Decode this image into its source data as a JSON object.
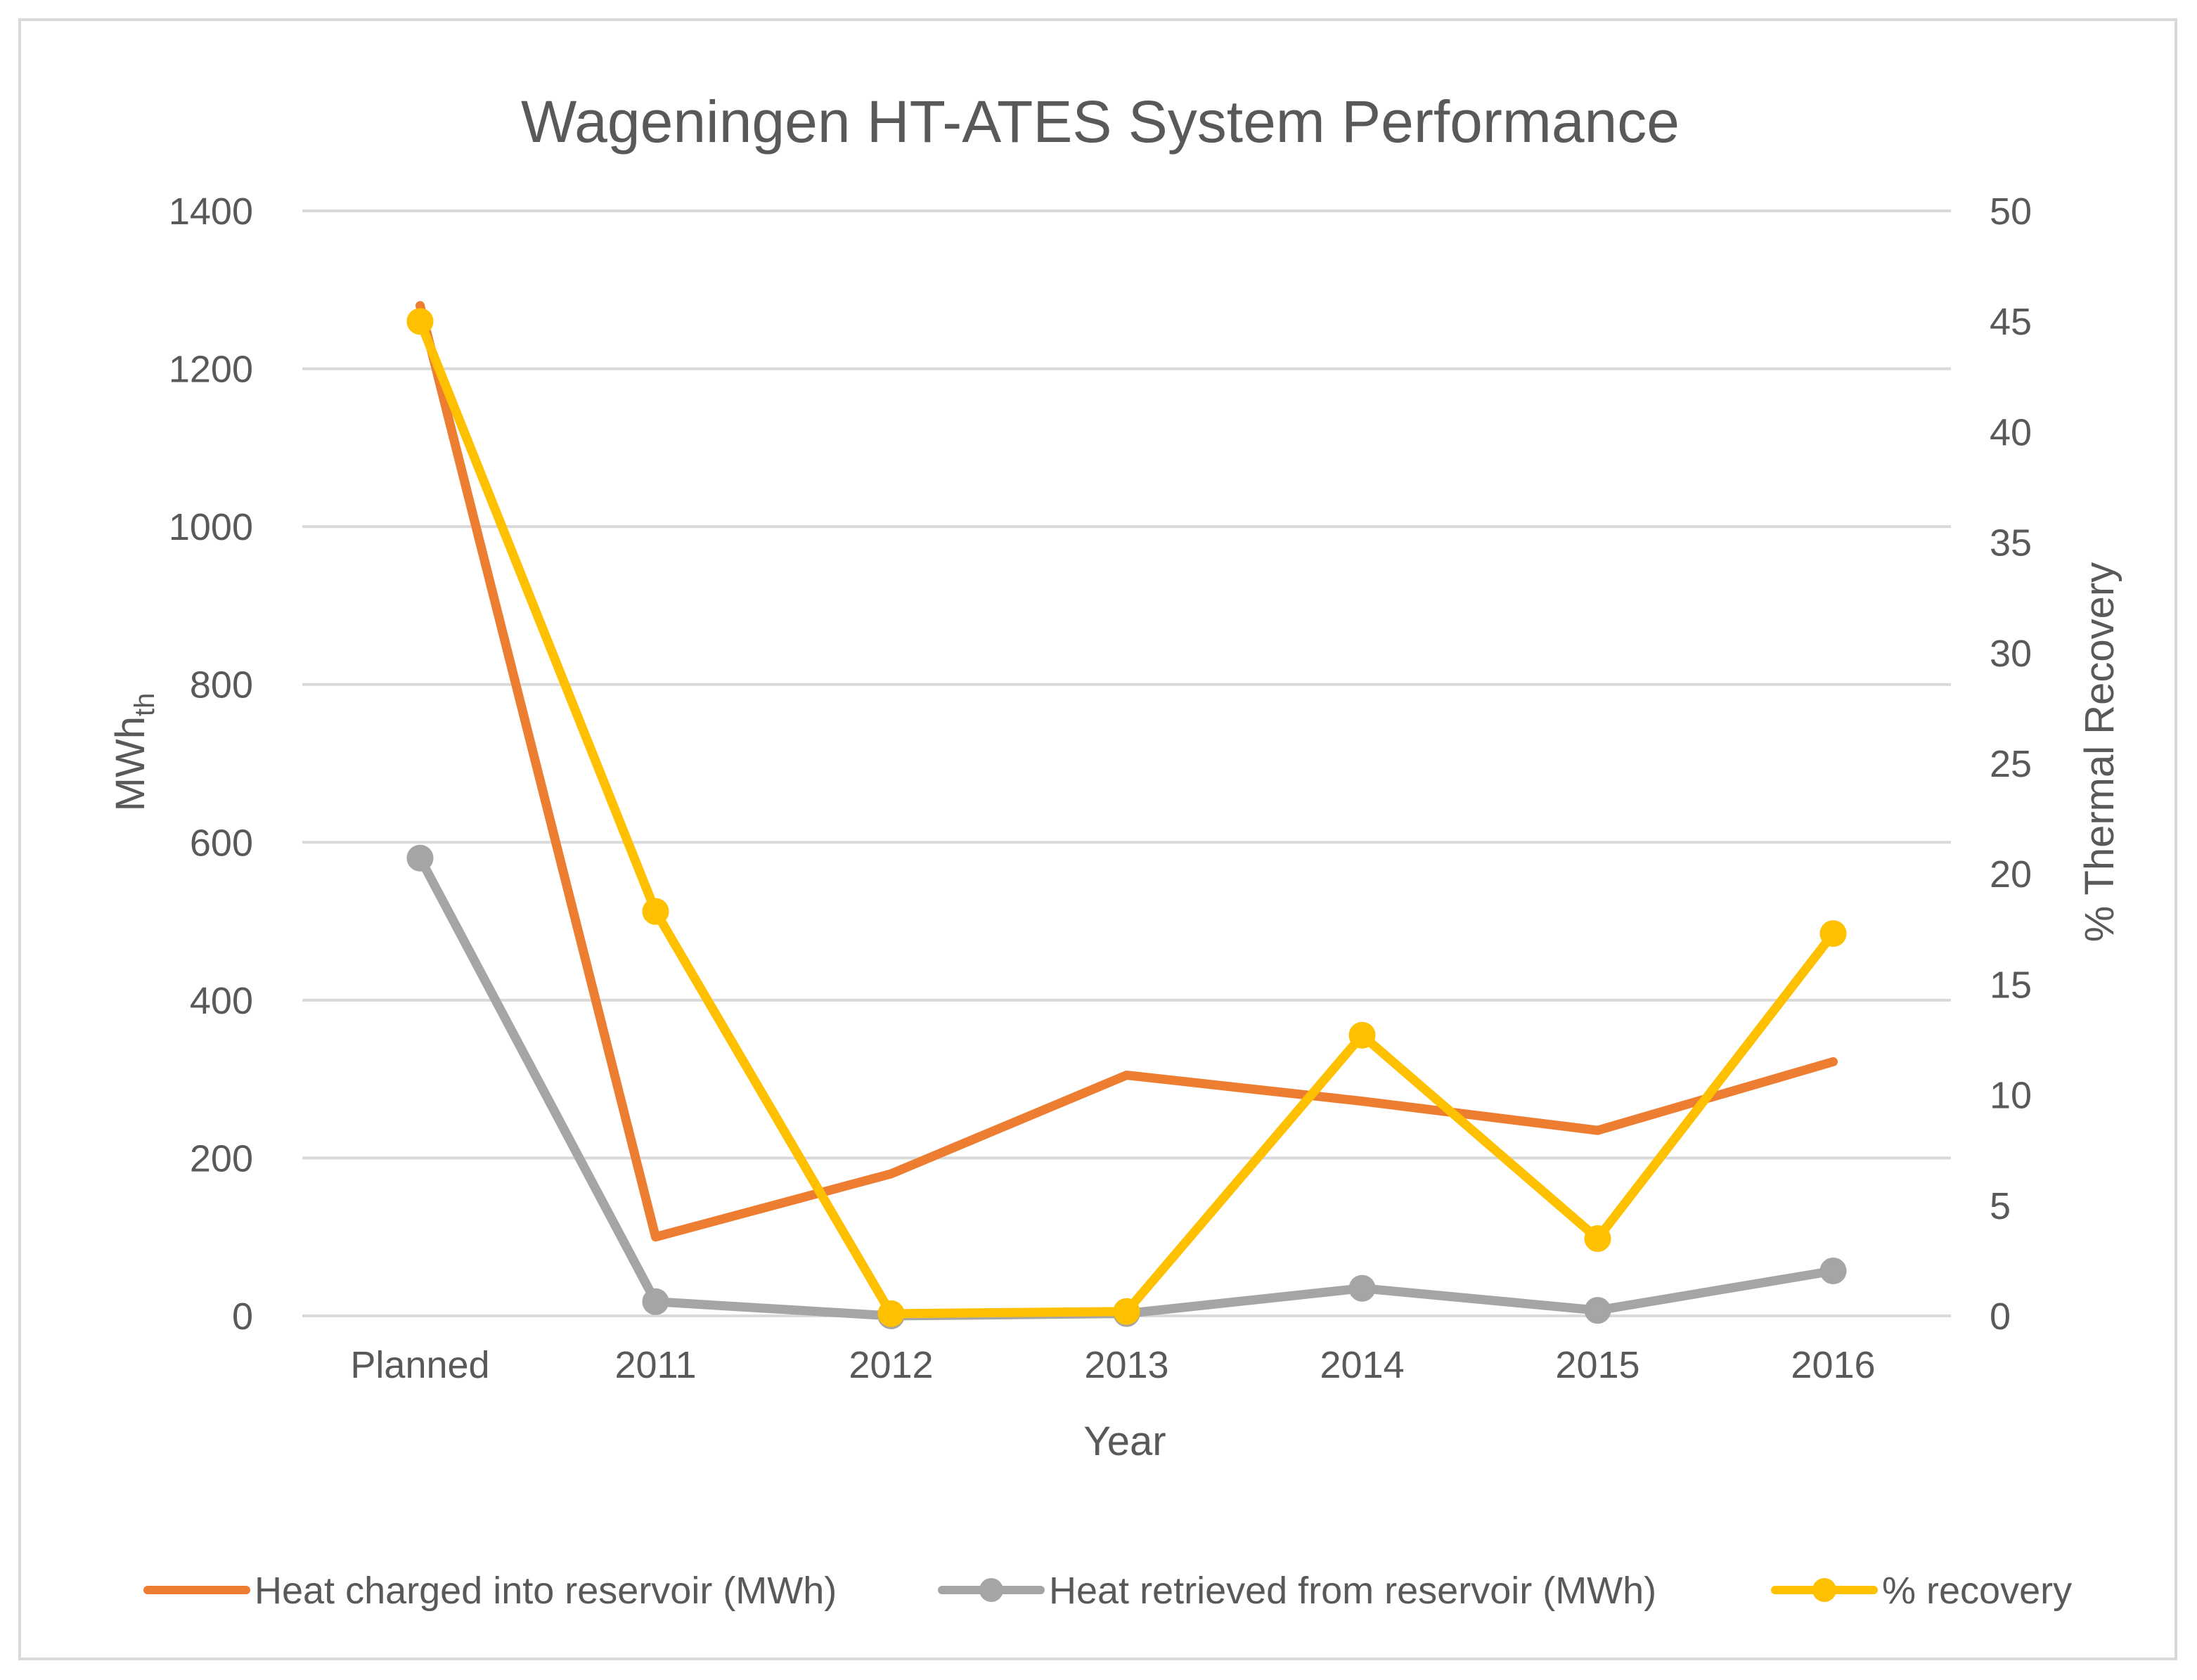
{
  "chart_data": {
    "type": "line",
    "title": "Wageningen HT-ATES System Performance",
    "xlabel": "Year",
    "ylabel_left": {
      "main": "MWh",
      "sub": "th"
    },
    "ylabel_right": "% Thermal Recovery",
    "categories": [
      "Planned",
      "2011",
      "2012",
      "2013",
      "2014",
      "2015",
      "2016"
    ],
    "ylim_left": [
      0,
      1400
    ],
    "yticks_left": [
      "0",
      "200",
      "400",
      "600",
      "800",
      "1000",
      "1200",
      "1400"
    ],
    "ylim_right": [
      0,
      50
    ],
    "yticks_right": [
      "0",
      "5",
      "10",
      "15",
      "20",
      "25",
      "30",
      "35",
      "40",
      "45",
      "50"
    ],
    "grid": true,
    "legend_position": "bottom",
    "series": [
      {
        "name": "Heat charged into reservoir (MWh)",
        "axis": "left",
        "color": "#ed7d31",
        "markers": false,
        "values": [
          1280,
          100,
          180,
          305,
          272,
          235,
          322
        ]
      },
      {
        "name": "Heat retrieved from reservoir (MWh)",
        "axis": "left",
        "color": "#a5a5a5",
        "markers": true,
        "values": [
          580,
          18,
          0,
          3,
          35,
          7,
          57
        ]
      },
      {
        "name": "% recovery",
        "axis": "right",
        "color": "#ffc000",
        "markers": true,
        "values": [
          45,
          18.3,
          0.1,
          0.2,
          12.7,
          3.5,
          17.3
        ]
      }
    ]
  }
}
